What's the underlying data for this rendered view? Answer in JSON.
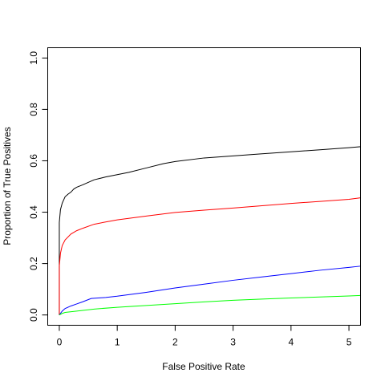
{
  "chart_data": {
    "type": "line",
    "title": "",
    "xlabel": "False Positive Rate",
    "ylabel": "Proportion of True Positives",
    "xlim": [
      -0.2,
      5.2
    ],
    "ylim": [
      -0.04,
      1.04
    ],
    "x_ticks": [
      0,
      1,
      2,
      3,
      4,
      5
    ],
    "x_tick_labels": [
      "0",
      "1",
      "2",
      "3",
      "4",
      "5"
    ],
    "y_ticks": [
      0.0,
      0.2,
      0.4,
      0.6,
      0.8,
      1.0
    ],
    "y_tick_labels": [
      "0.0",
      "0.2",
      "0.4",
      "0.6",
      "0.8",
      "1.0"
    ],
    "grid": false,
    "legend": "none",
    "series": [
      {
        "color": "#000000",
        "x": [
          0.0,
          0.0,
          0.02,
          0.05,
          0.1,
          0.15,
          0.2,
          0.25,
          0.3,
          0.4,
          0.6,
          0.8,
          1.0,
          1.2,
          1.5,
          1.8,
          2.0,
          2.5,
          3.0,
          3.5,
          4.0,
          4.5,
          5.0,
          5.2
        ],
        "y": [
          0.0,
          0.36,
          0.41,
          0.435,
          0.46,
          0.47,
          0.478,
          0.49,
          0.497,
          0.506,
          0.526,
          0.537,
          0.546,
          0.555,
          0.572,
          0.589,
          0.597,
          0.611,
          0.619,
          0.627,
          0.635,
          0.643,
          0.651,
          0.655
        ]
      },
      {
        "color": "#ff0000",
        "x": [
          0.0,
          0.0,
          0.02,
          0.05,
          0.1,
          0.2,
          0.3,
          0.4,
          0.6,
          0.8,
          1.0,
          1.5,
          2.0,
          2.5,
          3.0,
          3.5,
          4.0,
          4.5,
          5.0,
          5.2
        ],
        "y": [
          0.0,
          0.19,
          0.24,
          0.27,
          0.292,
          0.315,
          0.328,
          0.337,
          0.353,
          0.362,
          0.37,
          0.385,
          0.399,
          0.408,
          0.416,
          0.425,
          0.434,
          0.442,
          0.45,
          0.456
        ]
      },
      {
        "color": "#0000ff",
        "x": [
          0.0,
          0.05,
          0.1,
          0.2,
          0.3,
          0.4,
          0.55,
          0.8,
          1.0,
          1.5,
          2.0,
          2.5,
          3.0,
          3.5,
          4.0,
          4.5,
          5.0,
          5.2
        ],
        "y": [
          0.0,
          0.015,
          0.025,
          0.035,
          0.043,
          0.051,
          0.064,
          0.068,
          0.073,
          0.088,
          0.105,
          0.12,
          0.135,
          0.148,
          0.161,
          0.174,
          0.185,
          0.19
        ]
      },
      {
        "color": "#00ff00",
        "x": [
          0.0,
          0.05,
          0.1,
          0.3,
          0.6,
          1.0,
          1.5,
          2.0,
          2.5,
          3.0,
          3.5,
          4.0,
          4.5,
          5.0,
          5.2
        ],
        "y": [
          0.0,
          0.006,
          0.01,
          0.015,
          0.023,
          0.03,
          0.037,
          0.044,
          0.051,
          0.057,
          0.062,
          0.066,
          0.07,
          0.074,
          0.076
        ]
      }
    ]
  }
}
